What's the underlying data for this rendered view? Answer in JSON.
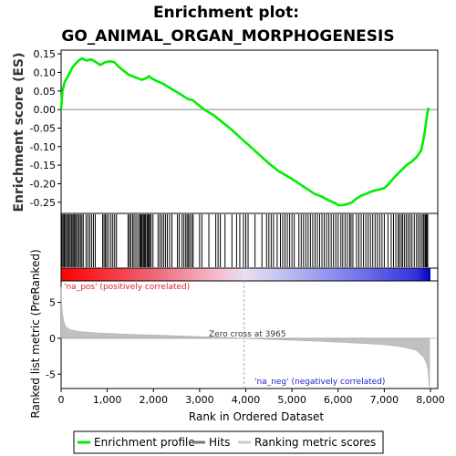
{
  "title_line1": "Enrichment plot:",
  "title_line2": "GO_ANIMAL_ORGAN_MORPHOGENESIS",
  "colors": {
    "enrichment_line": "#00ee00",
    "hits": "#000000",
    "ranking_fill": "#c0c0c0",
    "pos_label": "#dd2222",
    "neg_label": "#2222cc",
    "zero_line": "#888888"
  },
  "chart_data": [
    {
      "type": "line",
      "name": "enrichment-profile",
      "ylabel": "Enrichment score (ES)",
      "xlim": [
        0,
        8000
      ],
      "ylim": [
        -0.28,
        0.16
      ],
      "yticks": [
        0.15,
        0.1,
        0.05,
        0.0,
        -0.05,
        -0.1,
        -0.15,
        -0.2,
        -0.25
      ],
      "ytick_labels": [
        "0.15",
        "0.10",
        "0.05",
        "0.00",
        "-0.05",
        "-0.10",
        "-0.15",
        "-0.20",
        "-0.25"
      ],
      "x": [
        0,
        30,
        80,
        150,
        250,
        380,
        450,
        550,
        650,
        750,
        850,
        950,
        1050,
        1150,
        1250,
        1350,
        1450,
        1600,
        1750,
        1850,
        1900,
        1950,
        2050,
        2200,
        2400,
        2600,
        2750,
        2850,
        2950,
        3100,
        3300,
        3500,
        3700,
        3900,
        4100,
        4300,
        4500,
        4700,
        4900,
        5100,
        5300,
        5500,
        5650,
        5800,
        5950,
        6000,
        6100,
        6200,
        6300,
        6400,
        6500,
        6600,
        6700,
        6800,
        6900,
        7000,
        7100,
        7200,
        7300,
        7400,
        7500,
        7600,
        7700,
        7800,
        7850,
        7900,
        7930,
        7960
      ],
      "y": [
        0.0,
        0.05,
        0.075,
        0.09,
        0.115,
        0.132,
        0.138,
        0.132,
        0.135,
        0.128,
        0.12,
        0.127,
        0.13,
        0.128,
        0.115,
        0.105,
        0.095,
        0.087,
        0.08,
        0.085,
        0.09,
        0.085,
        0.078,
        0.07,
        0.055,
        0.04,
        0.028,
        0.025,
        0.015,
        0.0,
        -0.015,
        -0.035,
        -0.055,
        -0.078,
        -0.1,
        -0.123,
        -0.145,
        -0.165,
        -0.18,
        -0.195,
        -0.212,
        -0.228,
        -0.235,
        -0.245,
        -0.253,
        -0.258,
        -0.258,
        -0.255,
        -0.25,
        -0.24,
        -0.232,
        -0.228,
        -0.222,
        -0.218,
        -0.215,
        -0.212,
        -0.2,
        -0.185,
        -0.172,
        -0.16,
        -0.148,
        -0.14,
        -0.128,
        -0.11,
        -0.08,
        -0.04,
        -0.01,
        0.005
      ],
      "zero_line": true
    },
    {
      "type": "scatter",
      "name": "hits",
      "xlim": [
        0,
        8000
      ],
      "note_text": "",
      "hit_positions": [
        5,
        20,
        45,
        70,
        95,
        120,
        150,
        175,
        200,
        230,
        255,
        280,
        300,
        330,
        360,
        390,
        420,
        450,
        480,
        540,
        580,
        620,
        660,
        700,
        740,
        900,
        930,
        960,
        990,
        1030,
        1080,
        1120,
        1160,
        1200,
        1450,
        1480,
        1510,
        1550,
        1580,
        1620,
        1660,
        1700,
        1720,
        1740,
        1760,
        1790,
        1810,
        1830,
        1860,
        1880,
        1900,
        1920,
        1950,
        1990,
        2100,
        2140,
        2180,
        2220,
        2260,
        2300,
        2350,
        2400,
        2520,
        2560,
        2620,
        2660,
        2700,
        2730,
        2760,
        2790,
        2830,
        2860,
        3000,
        3050,
        3200,
        3350,
        3400,
        3450,
        3550,
        3700,
        3800,
        3870,
        3950,
        4000,
        4050,
        4200,
        4350,
        4450,
        4500,
        4550,
        4600,
        4680,
        4750,
        4800,
        4850,
        4900,
        4950,
        5000,
        5050,
        5150,
        5200,
        5250,
        5300,
        5350,
        5400,
        5450,
        5500,
        5550,
        5600,
        5650,
        5700,
        5750,
        5800,
        5850,
        5900,
        5950,
        6000,
        6060,
        6100,
        6150,
        6200,
        6250,
        6280,
        6320,
        6400,
        6450,
        6500,
        6550,
        6600,
        6650,
        6700,
        6750,
        6800,
        6850,
        6900,
        6950,
        7000,
        7080,
        7150,
        7200,
        7250,
        7300,
        7330,
        7370,
        7400,
        7440,
        7480,
        7520,
        7560,
        7600,
        7650,
        7700,
        7740,
        7780,
        7820,
        7850,
        7880,
        7900,
        7920,
        7940
      ]
    },
    {
      "type": "area",
      "name": "ranking-metric",
      "ylabel": "Ranked list metric (PreRanked)",
      "xlabel": "Rank in Ordered Dataset",
      "xlim": [
        0,
        8000
      ],
      "ylim": [
        -7,
        8
      ],
      "yticks": [
        5,
        0,
        -5
      ],
      "ytick_labels": [
        "5",
        "0",
        "-5"
      ],
      "xticks": [
        0,
        1000,
        2000,
        3000,
        4000,
        5000,
        6000,
        7000,
        8000
      ],
      "xtick_labels": [
        "0",
        "1,000",
        "2,000",
        "3,000",
        "4,000",
        "5,000",
        "6,000",
        "7,000",
        "8,000"
      ],
      "x": [
        0,
        10,
        30,
        60,
        100,
        200,
        400,
        800,
        1500,
        2500,
        3500,
        3965,
        4500,
        5500,
        6500,
        7000,
        7400,
        7700,
        7850,
        7920,
        7950,
        7970,
        7980
      ],
      "y": [
        7.2,
        5.0,
        3.5,
        2.3,
        1.6,
        1.2,
        0.95,
        0.75,
        0.55,
        0.35,
        0.12,
        0.0,
        -0.15,
        -0.4,
        -0.7,
        -0.9,
        -1.2,
        -1.7,
        -2.6,
        -3.6,
        -4.6,
        -6.5,
        -7.0
      ],
      "zero_cross": 3965,
      "zero_cross_label": "Zero cross at 3965",
      "pos_label": "'na_pos' (positively correlated)",
      "neg_label": "'na_neg' (negatively correlated)"
    }
  ],
  "legend": {
    "items": [
      {
        "label": "Enrichment profile",
        "color": "#00ee00"
      },
      {
        "label": "Hits",
        "color": "#777777"
      },
      {
        "label": "Ranking metric scores",
        "color": "#cccccc"
      }
    ]
  }
}
